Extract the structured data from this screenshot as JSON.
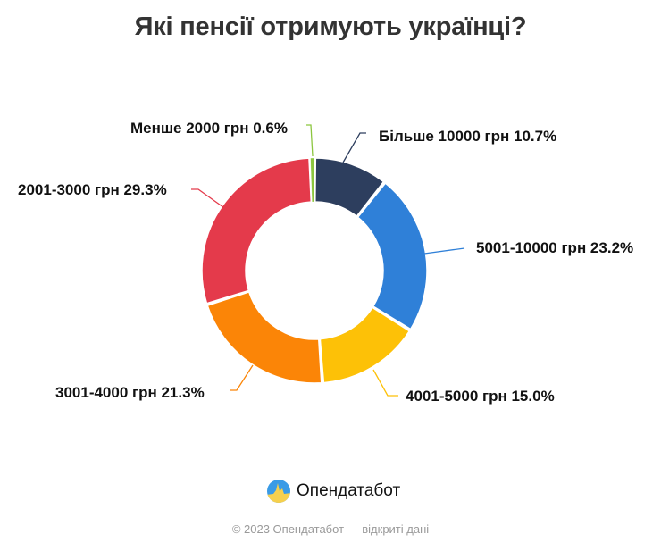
{
  "title": "Які пенсії отримують українці?",
  "chart_data": {
    "type": "pie",
    "subtype": "donut",
    "title": "Які пенсії отримують українці?",
    "unit": "%",
    "start_angle_deg": 0,
    "direction": "clockwise",
    "categories": [
      "Більше 10000 грн",
      "5001-10000 грн",
      "4001-5000 грн",
      "3001-4000 грн",
      "2001-3000 грн",
      "Менше 2000 грн"
    ],
    "values": [
      10.7,
      23.2,
      15.0,
      21.3,
      29.3,
      0.6
    ],
    "colors": [
      "#2d3e5e",
      "#2f80d8",
      "#fdc107",
      "#fb8507",
      "#e43a4b",
      "#8cc63f"
    ],
    "labels": [
      "Більше 10000 грн 10.7%",
      "5001-10000 грн 23.2%",
      "4001-5000 грн 15.0%",
      "3001-4000 грн 21.3%",
      "2001-3000 грн 29.3%",
      "Менше 2000 грн 0.6%"
    ],
    "legend": "none (inline labels with leader lines)"
  },
  "brand": {
    "logo_icon": "opendatabot-logo-icon",
    "name": "Опендатабот"
  },
  "footer": "© 2023 Опендатабот — відкриті дані"
}
